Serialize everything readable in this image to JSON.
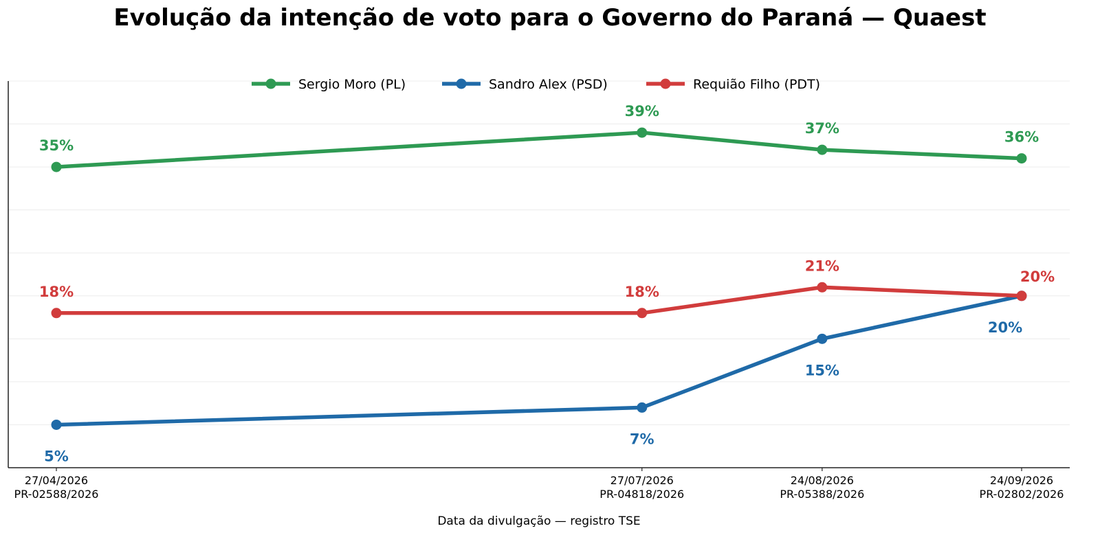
{
  "chart_data": {
    "type": "line",
    "title": "Evolução da intenção de voto para o Governo do Paraná — Quaest",
    "xlabel": "Data da divulgação — registro TSE",
    "ylabel": "",
    "x": [
      "2026-04-27",
      "2026-07-27",
      "2026-08-24",
      "2026-09-24"
    ],
    "x_tick_labels": [
      [
        "27/04/2026",
        "PR-02588/2026"
      ],
      [
        "27/07/2026",
        "PR-04818/2026"
      ],
      [
        "24/08/2026",
        "PR-05388/2026"
      ],
      [
        "24/09/2026",
        "PR-02802/2026"
      ]
    ],
    "ylim": [
      0,
      45
    ],
    "y_ticks_shown": false,
    "grid": "horizontal",
    "legend_position": "top-center",
    "series": [
      {
        "name": "Sergio Moro (PL)",
        "color": "#2e9a53",
        "values": [
          35,
          39,
          37,
          36
        ],
        "labels": [
          "35%",
          "39%",
          "37%",
          "36%"
        ],
        "label_position": [
          "above",
          "above",
          "above",
          "above"
        ]
      },
      {
        "name": "Sandro Alex (PSD)",
        "color": "#1f6aa8",
        "values": [
          5,
          7,
          15,
          20
        ],
        "labels": [
          "5%",
          "7%",
          "15%",
          "20%"
        ],
        "label_position": [
          "below",
          "below",
          "below",
          "below-left"
        ]
      },
      {
        "name": "Requião Filho (PDT)",
        "color": "#d13c3c",
        "values": [
          18,
          18,
          21,
          20
        ],
        "labels": [
          "18%",
          "18%",
          "21%",
          "20%"
        ],
        "label_position": [
          "above",
          "above",
          "above",
          "above-right"
        ]
      }
    ]
  }
}
